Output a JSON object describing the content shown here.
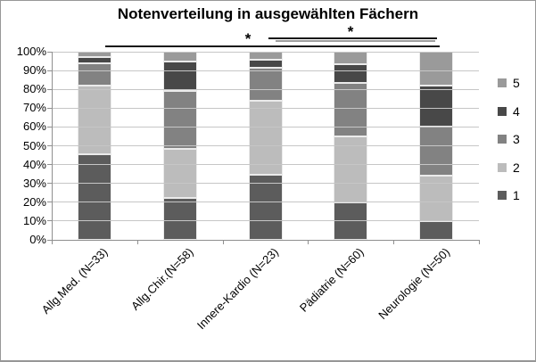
{
  "chart_data": {
    "type": "bar",
    "subtype": "stacked-100-percent",
    "title": "Notenverteilung in ausgewählten Fächern",
    "categories": [
      "Allg.Med. (N=33)",
      "Allg.Chir.(N=58)",
      "Innere-Kardio (N=23)",
      "Pädiatrie (N=60)",
      "Neurologie (N=50)"
    ],
    "series": [
      {
        "name": "1",
        "color": "#5c5c5c",
        "values": [
          45.5,
          22.4,
          34.8,
          20.0,
          10.0
        ]
      },
      {
        "name": "2",
        "color": "#bcbcbc",
        "values": [
          36.4,
          25.9,
          39.1,
          35.0,
          24.0
        ]
      },
      {
        "name": "3",
        "color": "#828282",
        "values": [
          12.1,
          31.0,
          17.4,
          28.3,
          26.0
        ]
      },
      {
        "name": "4",
        "color": "#484848",
        "values": [
          3.0,
          15.5,
          4.3,
          10.0,
          22.0
        ]
      },
      {
        "name": "5",
        "color": "#9a9a9a",
        "values": [
          3.0,
          5.2,
          4.3,
          6.7,
          18.0
        ]
      }
    ],
    "y_axis": {
      "min": 0,
      "max": 100,
      "ticks": [
        "0%",
        "10%",
        "20%",
        "30%",
        "40%",
        "50%",
        "60%",
        "70%",
        "80%",
        "90%",
        "100%"
      ]
    },
    "x_axis": {
      "label_rotation_deg": 45
    },
    "grid": true,
    "legend": {
      "position": "right",
      "order_top_to_bottom": [
        "5",
        "4",
        "3",
        "2",
        "1"
      ]
    },
    "annotations": [
      {
        "symbol": "*",
        "from_category": "Allg.Med. (N=33)",
        "to_category": "Neurologie (N=50)"
      },
      {
        "symbol": "*",
        "from_category": "Innere-Kardio (N=23)",
        "to_category": "Neurologie (N=50)"
      }
    ]
  },
  "colors": {
    "gridline": "#c6c6c6",
    "axis_line": "#8f8f8f",
    "text": "#000000",
    "chart_border": "#979797"
  }
}
